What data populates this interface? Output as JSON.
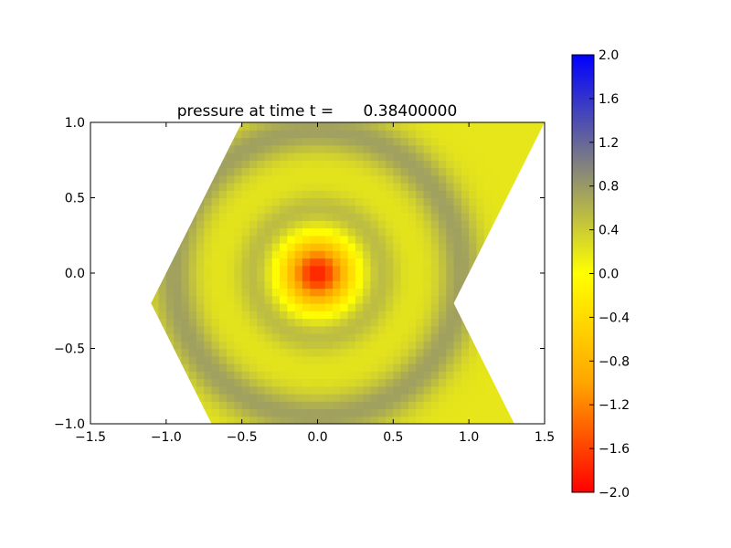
{
  "chart_data": {
    "type": "heatmap",
    "title": "pressure at time t =      0.38400000",
    "xlabel": "",
    "ylabel": "",
    "xlim": [
      -1.5,
      1.5
    ],
    "ylim": [
      -1.0,
      1.0
    ],
    "x_ticks": [
      "−1.5",
      "−1.0",
      "−0.5",
      "0.0",
      "0.5",
      "1.0",
      "1.5"
    ],
    "x_tick_values": [
      -1.5,
      -1.0,
      -0.5,
      0.0,
      0.5,
      1.0,
      1.5
    ],
    "y_ticks": [
      "−1.0",
      "−0.5",
      "0.0",
      "0.5",
      "1.0"
    ],
    "y_tick_values": [
      -1.0,
      -0.5,
      0.0,
      0.5,
      1.0
    ],
    "domain_polygon": [
      [
        -0.5,
        1.0
      ],
      [
        1.5,
        1.0
      ],
      [
        0.9,
        -0.2
      ],
      [
        1.3,
        -1.0
      ],
      [
        -0.7,
        -1.0
      ],
      [
        -1.1,
        -0.2
      ]
    ],
    "pressure_field": {
      "center": [
        0.0,
        0.0
      ],
      "center_value": -2.0,
      "core_radius": 0.26,
      "wave_radius": 0.95,
      "wave_value": 0.75,
      "wave_width": 0.15,
      "background_value": 0.2
    },
    "colorbar": {
      "vmin": -2.0,
      "vmax": 2.0,
      "ticks": [
        "2.0",
        "1.6",
        "1.2",
        "0.8",
        "0.4",
        "0.0",
        "−0.4",
        "−0.8",
        "−1.2",
        "−1.6",
        "−2.0"
      ],
      "tick_values": [
        2.0,
        1.6,
        1.2,
        0.8,
        0.4,
        0.0,
        -0.4,
        -0.8,
        -1.2,
        -1.6,
        -2.0
      ],
      "colors": [
        "#ff0000",
        "#ffa500",
        "#ffff00",
        "#808080",
        "#0000ff"
      ]
    }
  }
}
